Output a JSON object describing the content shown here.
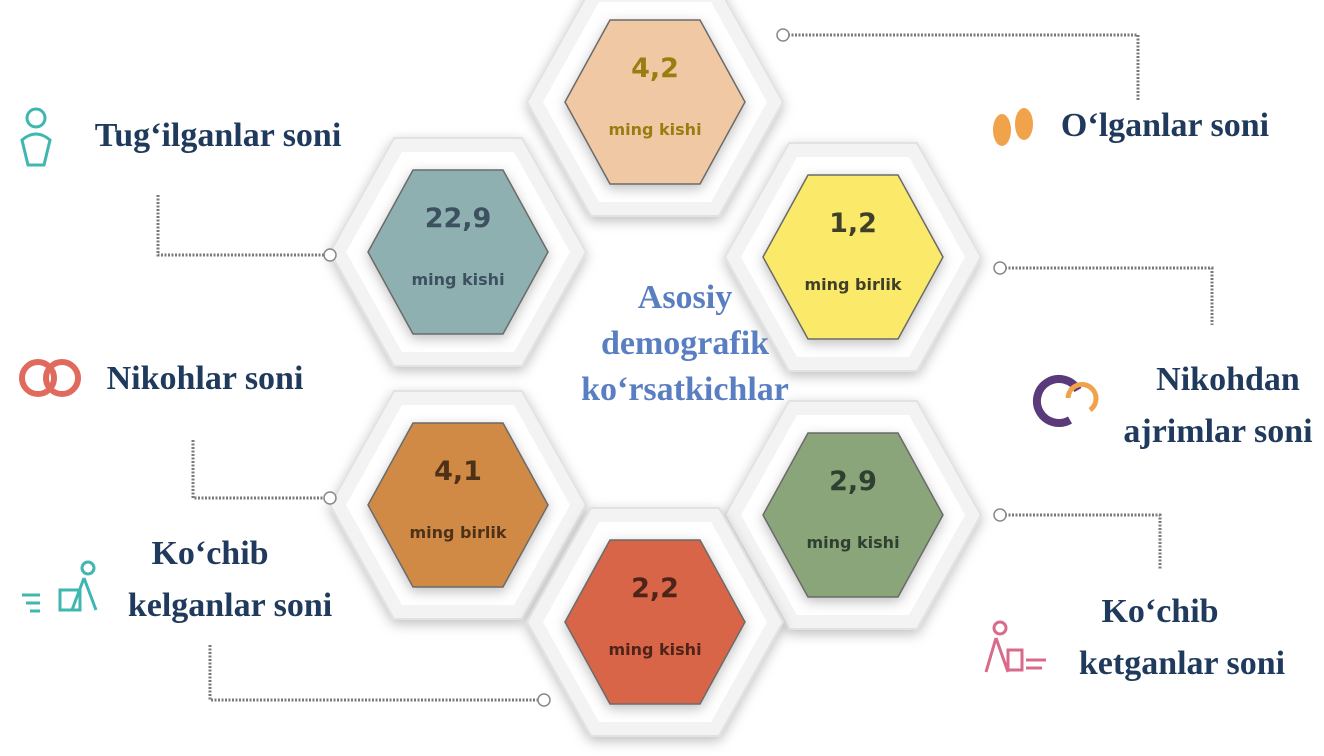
{
  "center": [
    "Asosiy",
    "demografik",
    "ko‘rsatkichlar"
  ],
  "hexagons": [
    {
      "value": "4,2",
      "unit": "ming kishi",
      "color": "#f0c9a4",
      "text_color": "#9a7d10"
    },
    {
      "value": "22,9",
      "unit": "ming kishi",
      "color": "#8fb0b0",
      "text_color": "#3c5060"
    },
    {
      "value": "1,2",
      "unit": "ming birlik",
      "color": "#fbe96a",
      "text_color": "#3f3f2a"
    },
    {
      "value": "4,1",
      "unit": "ming birlik",
      "color": "#d08a45",
      "text_color": "#4e3218"
    },
    {
      "value": "2,9",
      "unit": "ming kishi",
      "color": "#8aa57a",
      "text_color": "#2f3f30"
    },
    {
      "value": "2,2",
      "unit": "ming kishi",
      "color": "#d9654a",
      "text_color": "#4e2418"
    }
  ],
  "labels": [
    [
      "Tug‘ilganlar soni"
    ],
    [
      "O‘lganlar soni"
    ],
    [
      "Nikohlar soni"
    ],
    [
      "Nikohdan",
      "ajrimlar soni"
    ],
    [
      "Ko‘chib",
      "kelganlar soni"
    ],
    [
      "Ko‘chib",
      "ketganlar soni"
    ]
  ]
}
